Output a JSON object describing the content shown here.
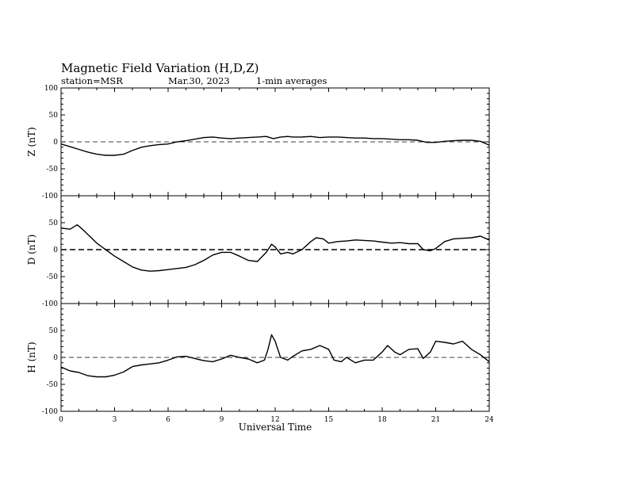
{
  "header": {
    "title": "Magnetic Field Variation (H,D,Z)",
    "station": "station=MSR",
    "date": "Mar.30, 2023",
    "averaging": "1-min averages"
  },
  "chart_data": [
    {
      "type": "line",
      "panel": "Z",
      "ylabel": "Z (nT)",
      "ylim": [
        -100,
        100
      ],
      "yticks": [
        100,
        50,
        0,
        -50,
        -100
      ],
      "xlim": [
        0,
        24
      ],
      "zero_line": "dashed",
      "series": [
        {
          "x": [
            0,
            0.5,
            1,
            1.5,
            2,
            2.5,
            3,
            3.5,
            4,
            4.5,
            5,
            5.5,
            6,
            6.5,
            7,
            7.5,
            8,
            8.5,
            9,
            9.5,
            10,
            10.5,
            11,
            11.5,
            11.9,
            12.3,
            12.7,
            13,
            13.5,
            14,
            14.5,
            15,
            15.5,
            16,
            16.5,
            17,
            17.5,
            18,
            18.5,
            19,
            19.5,
            20,
            20.5,
            21,
            21.5,
            22,
            22.5,
            23,
            23.5,
            24
          ],
          "values": [
            -4,
            -9,
            -14,
            -19,
            -23,
            -25,
            -25,
            -23,
            -16,
            -10,
            -7,
            -5,
            -4,
            0,
            2,
            5,
            8,
            9,
            7,
            6,
            7,
            8,
            9,
            10,
            6,
            9,
            10,
            9,
            9,
            10,
            8,
            9,
            9,
            8,
            7,
            7,
            6,
            6,
            5,
            4,
            4,
            3,
            -1,
            -1,
            1,
            2,
            3,
            3,
            1,
            -6
          ]
        }
      ]
    },
    {
      "type": "line",
      "panel": "D",
      "ylabel": "D (nT)",
      "ylim": [
        -100,
        100
      ],
      "yticks": [
        100,
        50,
        0,
        -50,
        -100
      ],
      "xlim": [
        0,
        24
      ],
      "zero_line": "dashed",
      "series": [
        {
          "x": [
            0,
            0.5,
            0.9,
            1.2,
            1.6,
            2,
            2.5,
            3,
            3.5,
            4,
            4.5,
            5,
            5.5,
            6,
            6.5,
            7,
            7.5,
            8,
            8.5,
            9,
            9.5,
            10,
            10.5,
            11,
            11.5,
            11.8,
            12,
            12.3,
            12.7,
            13,
            13.5,
            14,
            14.3,
            14.7,
            15,
            15.5,
            16,
            16.5,
            17,
            17.5,
            18,
            18.5,
            19,
            19.5,
            20,
            20.3,
            20.7,
            21,
            21.5,
            22,
            22.5,
            23,
            23.5,
            24
          ],
          "values": [
            40,
            38,
            46,
            38,
            25,
            12,
            0,
            -12,
            -22,
            -32,
            -38,
            -40,
            -39,
            -37,
            -35,
            -33,
            -28,
            -20,
            -10,
            -5,
            -5,
            -12,
            -20,
            -22,
            -5,
            10,
            5,
            -8,
            -5,
            -8,
            0,
            15,
            22,
            20,
            12,
            15,
            16,
            18,
            17,
            16,
            14,
            12,
            13,
            11,
            11,
            0,
            -2,
            2,
            15,
            20,
            21,
            22,
            25,
            18
          ]
        }
      ]
    },
    {
      "type": "line",
      "panel": "H",
      "ylabel": "H (nT)",
      "ylim": [
        -100,
        100
      ],
      "yticks": [
        100,
        50,
        0,
        -50,
        -100
      ],
      "xlim": [
        0,
        24
      ],
      "xticks": [
        0,
        3,
        6,
        9,
        12,
        15,
        18,
        21,
        24
      ],
      "xlabel": "Universal Time",
      "zero_line": "dashed",
      "series": [
        {
          "x": [
            0,
            0.5,
            1,
            1.5,
            2,
            2.5,
            3,
            3.5,
            4,
            4.5,
            5,
            5.5,
            6,
            6.5,
            7,
            7.5,
            8,
            8.5,
            9,
            9.5,
            10,
            10.5,
            11,
            11.4,
            11.6,
            11.8,
            12,
            12.3,
            12.7,
            13,
            13.5,
            14,
            14.5,
            15,
            15.3,
            15.7,
            16,
            16.5,
            17,
            17.5,
            18,
            18.3,
            18.7,
            19,
            19.5,
            20,
            20.3,
            20.7,
            21,
            21.5,
            22,
            22.5,
            23,
            23.5,
            24
          ],
          "values": [
            -18,
            -25,
            -28,
            -34,
            -36,
            -36,
            -33,
            -27,
            -17,
            -14,
            -12,
            -10,
            -5,
            1,
            2,
            -2,
            -6,
            -8,
            -3,
            4,
            0,
            -3,
            -10,
            -5,
            15,
            42,
            30,
            0,
            -5,
            2,
            12,
            15,
            22,
            15,
            -5,
            -8,
            0,
            -10,
            -5,
            -5,
            10,
            22,
            10,
            5,
            15,
            16,
            -2,
            10,
            30,
            28,
            25,
            30,
            15,
            5,
            -8
          ]
        }
      ]
    }
  ]
}
